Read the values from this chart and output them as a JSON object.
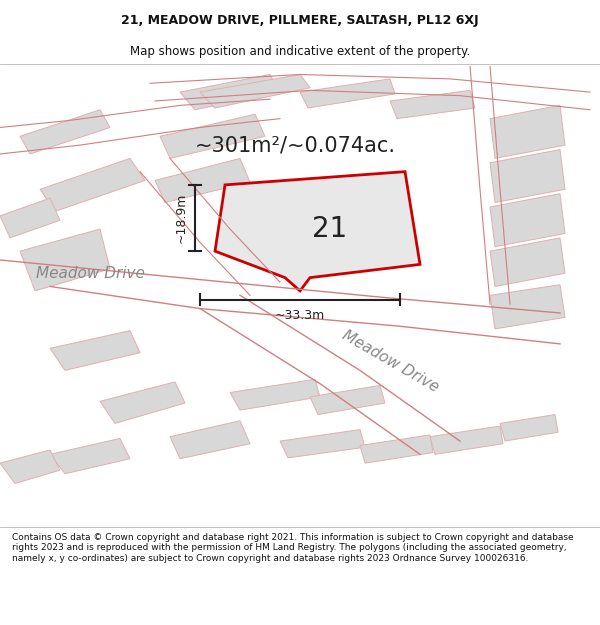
{
  "title_line1": "21, MEADOW DRIVE, PILLMERE, SALTASH, PL12 6XJ",
  "title_line2": "Map shows position and indicative extent of the property.",
  "footer": "Contains OS data © Crown copyright and database right 2021. This information is subject to Crown copyright and database rights 2023 and is reproduced with the permission of HM Land Registry. The polygons (including the associated geometry, namely x, y co-ordinates) are subject to Crown copyright and database rights 2023 Ordnance Survey 100026316.",
  "area_text": "~301m²/~0.074ac.",
  "plot_number": "21",
  "dim_height": "~18.9m",
  "dim_width": "~33.3m",
  "road_label1": "Meadow Drive",
  "road_label2": "Meadow Drive",
  "map_bg": "#ffffff",
  "plot_edge_color": "#cc0000",
  "building_color": "#d8d8d8",
  "building_edge": "#e0b0b0",
  "dim_color": "#222222",
  "title_color": "#111111",
  "footer_color": "#111111"
}
